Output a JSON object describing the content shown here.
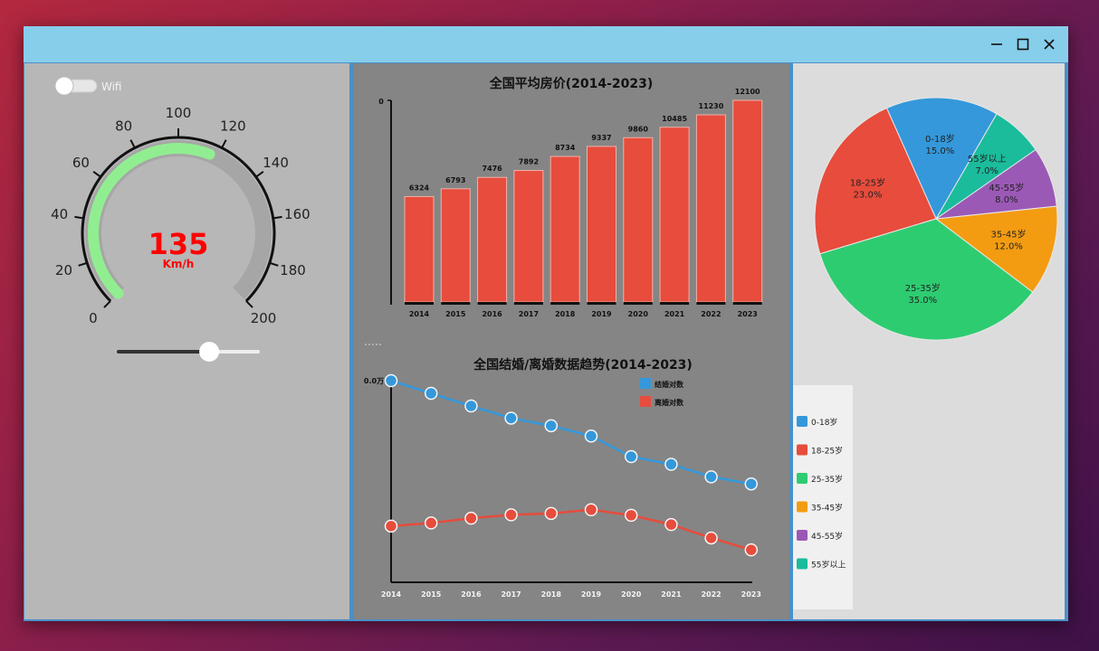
{
  "window": {
    "controls": {
      "minimize": "minimize-icon",
      "maximize": "maximize-icon",
      "close": "close-icon"
    }
  },
  "toggle": {
    "label": "Wifi",
    "on": false
  },
  "gauge": {
    "value": "135",
    "unit": "Km/h",
    "min": 0,
    "max": 200,
    "ticks": [
      "0",
      "20",
      "40",
      "60",
      "80",
      "100",
      "120",
      "140",
      "160",
      "180",
      "200"
    ],
    "progress_value": 116,
    "colors": {
      "progress": "#90ee90",
      "value": "#ff0000"
    }
  },
  "slider": {
    "value_fraction": 0.65
  },
  "bar_chart": {
    "chart_data": {
      "type": "bar",
      "title": "全国平均房价(2014-2023)",
      "categories": [
        "2014",
        "2015",
        "2016",
        "2017",
        "2018",
        "2019",
        "2020",
        "2021",
        "2022",
        "2023"
      ],
      "values": [
        6324,
        6793,
        7476,
        7892,
        8734,
        9337,
        9860,
        10485,
        11230,
        12100
      ],
      "data_labels": [
        "6324",
        "6793",
        "7476",
        "7892",
        "8734",
        "9337",
        "9860",
        "10485",
        "11230",
        "12100"
      ],
      "y_tick_label": "0",
      "ylim": [
        0,
        12100
      ],
      "color": "#e74c3c"
    }
  },
  "line_chart": {
    "chart_data": {
      "type": "line",
      "title": "全国结婚/离婚数据趋势(2014-2023)",
      "categories": [
        "2014",
        "2015",
        "2016",
        "2017",
        "2018",
        "2019",
        "2020",
        "2021",
        "2022",
        "2023"
      ],
      "y_tick_label": "0.0万",
      "series": [
        {
          "name": "结婚对数",
          "color": "#3498db",
          "values": [
            1306,
            1224,
            1142,
            1063,
            1014,
            947,
            814,
            764,
            683,
            637
          ]
        },
        {
          "name": "离婚对数",
          "color": "#e74c3c",
          "values": [
            364,
            384,
            415,
            437,
            446,
            470,
            434,
            374,
            287,
            210
          ]
        }
      ],
      "ylim": [
        0,
        1306
      ]
    }
  },
  "pie_chart": {
    "chart_data": {
      "type": "pie",
      "slices": [
        {
          "label": "0-18岁",
          "percent_label": "15.0%",
          "value": 15.0,
          "color": "#3498db"
        },
        {
          "label": "18-25岁",
          "percent_label": "23.0%",
          "value": 23.0,
          "color": "#e74c3c"
        },
        {
          "label": "25-35岁",
          "percent_label": "35.0%",
          "value": 35.0,
          "color": "#2ecc71"
        },
        {
          "label": "35-45岁",
          "percent_label": "12.0%",
          "value": 12.0,
          "color": "#f39c12"
        },
        {
          "label": "45-55岁",
          "percent_label": "8.0%",
          "value": 8.0,
          "color": "#9b59b6"
        },
        {
          "label": "55岁以上",
          "percent_label": "7.0%",
          "value": 7.0,
          "color": "#1abc9c"
        }
      ],
      "legend": [
        "0-18岁",
        "18-25岁",
        "25-35岁",
        "35-45岁",
        "45-55岁",
        "55岁以上"
      ],
      "legend_position": "bottom-left"
    }
  }
}
